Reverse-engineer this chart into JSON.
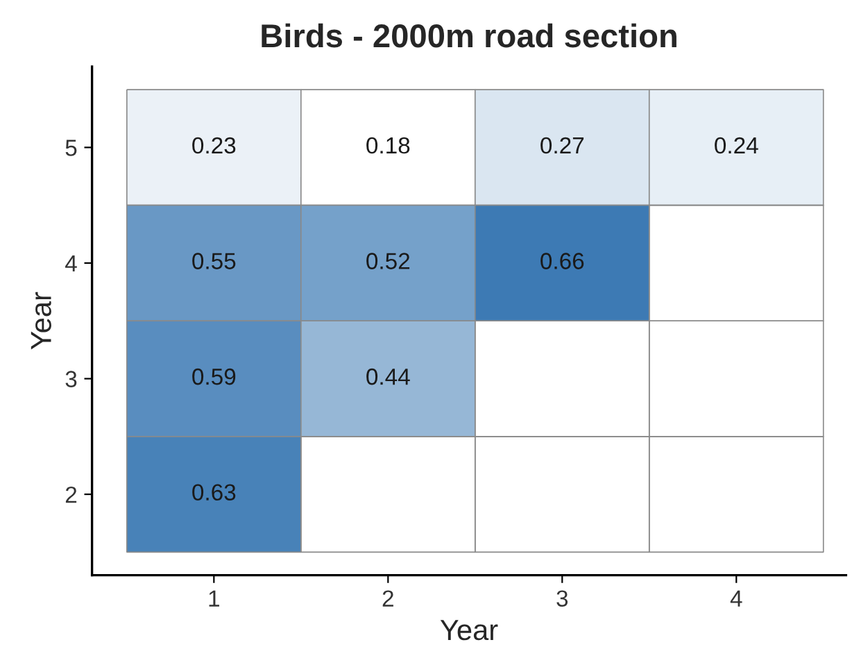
{
  "chart_data": {
    "type": "heatmap",
    "title": "Birds - 2000m road section",
    "xlabel": "Year",
    "ylabel": "Year",
    "categories": [
      "1",
      "2",
      "3",
      "4"
    ],
    "y_categories": [
      "5",
      "4",
      "3",
      "2"
    ],
    "cells": [
      [
        0.23,
        0.18,
        0.27,
        0.24
      ],
      [
        0.55,
        0.52,
        0.66,
        null
      ],
      [
        0.59,
        0.44,
        null,
        null
      ],
      [
        0.63,
        null,
        null,
        null
      ]
    ],
    "data_labels": true,
    "grid": false
  }
}
